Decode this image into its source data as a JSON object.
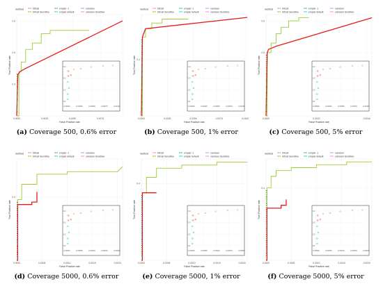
{
  "legend": {
    "title": "method",
    "items": [
      {
        "label": "bifrost",
        "color": "#f8766d"
      },
      {
        "label": "bifrost Sensitive",
        "color": "#b79f00"
      },
      {
        "label": "empiar -1",
        "color": "#00ba38"
      },
      {
        "label": "empiar default",
        "color": "#00bfc4"
      },
      {
        "label": "vamsian",
        "color": "#619cff"
      },
      {
        "label": "vamsian Sensitive",
        "color": "#f564e3"
      }
    ]
  },
  "colors": {
    "green": "#9acd32",
    "red": "#e41a1c",
    "grid": "#ececec"
  },
  "xlabel": "False Positive rate",
  "ylabel": "True Positive rate",
  "chart_data": [
    {
      "type": "line",
      "panel_letter": "(a)",
      "caption": "Coverage 500, 0.6% error",
      "xlim": [
        0,
        0.0095
      ],
      "ylim": [
        0.3,
        0.62
      ],
      "xticks": [
        "0.0000",
        "0.0025",
        "0.0050",
        "0.0075"
      ],
      "xtick_vals": [
        0,
        0.0025,
        0.005,
        0.0075
      ],
      "yticks": [
        "0.4",
        "0.5",
        "0.6"
      ],
      "ytick_vals": [
        0.4,
        0.5,
        0.6
      ],
      "series": [
        {
          "color": "green",
          "x": [
            0,
            0.0002,
            0.0002,
            0.0004,
            0.0004,
            0.0008,
            0.0008,
            0.0014,
            0.0014,
            0.0022,
            0.0022,
            0.003,
            0.003,
            0.0065
          ],
          "y": [
            0.3,
            0.3,
            0.44,
            0.44,
            0.47,
            0.47,
            0.51,
            0.51,
            0.53,
            0.53,
            0.56,
            0.56,
            0.57,
            0.57
          ]
        },
        {
          "color": "red",
          "x": [
            0,
            0.0001,
            0.0003,
            0.0008,
            0.0095
          ],
          "y": [
            0.3,
            0.43,
            0.44,
            0.45,
            0.6
          ]
        }
      ],
      "inset": {
        "xticks": [
          "0.00000",
          "0.00025",
          "0.00050",
          "0.00075",
          "0.00100"
        ],
        "yticks": [
          "0.1",
          "0.2",
          "0.3",
          "0.4"
        ]
      }
    },
    {
      "type": "line",
      "panel_letter": "(b)",
      "caption": "Coverage 500, 1% error",
      "xlim": [
        0,
        0.0102
      ],
      "ylim": [
        0.3,
        0.48
      ],
      "xticks": [
        "0.0000",
        "0.0025",
        "0.0050",
        "0.0075",
        "0.0100"
      ],
      "xtick_vals": [
        0,
        0.0025,
        0.005,
        0.0075,
        0.01
      ],
      "yticks": [
        "0.4"
      ],
      "ytick_vals": [
        0.4
      ],
      "series": [
        {
          "color": "green",
          "x": [
            0,
            0.0001,
            0.0001,
            0.0004,
            0.0004,
            0.001,
            0.001,
            0.002,
            0.002,
            0.0045
          ],
          "y": [
            0.3,
            0.3,
            0.44,
            0.44,
            0.455,
            0.455,
            0.465,
            0.465,
            0.472,
            0.472
          ]
        },
        {
          "color": "red",
          "x": [
            0,
            0.0001,
            0.0004,
            0.0102
          ],
          "y": [
            0.3,
            0.44,
            0.455,
            0.475
          ]
        }
      ],
      "inset": {
        "xticks": [
          "0.00000",
          "0.00025",
          "0.00050",
          "0.00075",
          "0.00100"
        ],
        "yticks": [
          "0.1",
          "0.2",
          "0.3",
          "0.4"
        ]
      }
    },
    {
      "type": "line",
      "panel_letter": "(c)",
      "caption": "Coverage 500, 5% error",
      "xlim": [
        0,
        0.0042
      ],
      "ylim": [
        0.3,
        0.62
      ],
      "xticks": [
        "0.0000",
        "0.0020",
        "0.0040"
      ],
      "xtick_vals": [
        0,
        0.002,
        0.004
      ],
      "yticks": [
        "0.5",
        "0.6"
      ],
      "ytick_vals": [
        0.5,
        0.6
      ],
      "series": [
        {
          "color": "green",
          "x": [
            0,
            5e-05,
            5e-05,
            0.0002,
            0.0002,
            0.0004,
            0.0004,
            0.0006,
            0.0006,
            0.0009,
            0.0009,
            0.0013,
            0.0013,
            0.0017
          ],
          "y": [
            0.3,
            0.3,
            0.5,
            0.5,
            0.53,
            0.53,
            0.56,
            0.56,
            0.58,
            0.58,
            0.6,
            0.6,
            0.61,
            0.61
          ]
        },
        {
          "color": "red",
          "x": [
            0,
            5e-05,
            0.0001,
            0.0004,
            0.0042
          ],
          "y": [
            0.3,
            0.5,
            0.51,
            0.52,
            0.61
          ]
        }
      ],
      "inset": {
        "xticks": [
          "0.00000",
          "0.00025",
          "0.00050",
          "0.00075",
          "0.00100"
        ],
        "yticks": [
          "0.1",
          "0.2",
          "0.3",
          "0.4"
        ]
      }
    },
    {
      "type": "line",
      "panel_letter": "(d)",
      "caption": "Coverage 5000, 0.6% error",
      "xlim": [
        0,
        0.0021
      ],
      "ylim": [
        0.15,
        0.55
      ],
      "xticks": [
        "0.0000",
        "0.0005",
        "0.0010",
        "0.0015",
        "0.0020"
      ],
      "xtick_vals": [
        0,
        0.0005,
        0.001,
        0.0015,
        0.002
      ],
      "yticks": [
        "0.4"
      ],
      "ytick_vals": [
        0.4
      ],
      "series": [
        {
          "color": "green",
          "x": [
            0,
            2e-05,
            2e-05,
            0.0001,
            0.0001,
            0.0004,
            0.0004,
            0.001,
            0.001,
            0.002,
            0.0021
          ],
          "y": [
            0.15,
            0.15,
            0.39,
            0.39,
            0.45,
            0.45,
            0.49,
            0.49,
            0.5,
            0.5,
            0.52
          ]
        },
        {
          "color": "red",
          "x": [
            0,
            2e-05,
            2e-05,
            0.0003,
            0.0003,
            0.0004,
            0.0004
          ],
          "y": [
            0.15,
            0.15,
            0.37,
            0.37,
            0.38,
            0.38,
            0.42
          ]
        }
      ],
      "inset": {
        "xticks": [
          "0.00000",
          "0.00005",
          "0.00010",
          "0.00015",
          "0.00020"
        ],
        "yticks": [
          "0.1",
          "0.2",
          "0.3",
          "0.4"
        ]
      }
    },
    {
      "type": "line",
      "panel_letter": "(e)",
      "caption": "Coverage 5000, 1% error",
      "xlim": [
        0,
        0.0021
      ],
      "ylim": [
        0.15,
        0.48
      ],
      "xticks": [
        "0.0000",
        "0.0005",
        "0.0010",
        "0.0015",
        "0.0020"
      ],
      "xtick_vals": [
        0,
        0.0005,
        0.001,
        0.0015,
        0.002
      ],
      "yticks": [
        "0.4"
      ],
      "ytick_vals": [
        0.4
      ],
      "series": [
        {
          "color": "green",
          "x": [
            0,
            2e-05,
            2e-05,
            0.0001,
            0.0001,
            0.0003,
            0.0003,
            0.0008,
            0.0008,
            0.0015,
            0.0015,
            0.0021
          ],
          "y": [
            0.15,
            0.15,
            0.37,
            0.37,
            0.42,
            0.42,
            0.45,
            0.45,
            0.46,
            0.46,
            0.47,
            0.47
          ]
        },
        {
          "color": "red",
          "x": [
            0,
            2e-05,
            2e-05,
            0.0003
          ],
          "y": [
            0.15,
            0.15,
            0.37,
            0.37
          ]
        }
      ],
      "inset": {
        "xticks": [
          "0.00000",
          "0.00005",
          "0.00010",
          "0.00015",
          "0.00020"
        ],
        "yticks": [
          "0.1",
          "0.2",
          "0.3",
          "0.4"
        ]
      }
    },
    {
      "type": "line",
      "panel_letter": "(f)",
      "caption": "Coverage 5000, 5% error",
      "xlim": [
        0,
        0.0021
      ],
      "ylim": [
        0.15,
        0.5
      ],
      "xticks": [
        "0.0000",
        "0.0005",
        "0.0010",
        "0.0015",
        "0.0020"
      ],
      "xtick_vals": [
        0,
        0.0005,
        0.001,
        0.0015,
        0.002
      ],
      "yticks": [
        "0.4"
      ],
      "ytick_vals": [
        0.4
      ],
      "series": [
        {
          "color": "green",
          "x": [
            0,
            2e-05,
            2e-05,
            0.0001,
            0.0001,
            0.0002,
            0.0002,
            0.0005,
            0.0005,
            0.001,
            0.001,
            0.0016,
            0.0016,
            0.0021
          ],
          "y": [
            0.15,
            0.15,
            0.4,
            0.4,
            0.44,
            0.44,
            0.46,
            0.46,
            0.47,
            0.47,
            0.48,
            0.48,
            0.49,
            0.49
          ]
        },
        {
          "color": "red",
          "x": [
            0,
            2e-05,
            2e-05,
            0.0003,
            0.0003,
            0.0004,
            0.0004
          ],
          "y": [
            0.15,
            0.15,
            0.33,
            0.33,
            0.34,
            0.34,
            0.36
          ]
        }
      ],
      "inset": {
        "xticks": [
          "0.00000",
          "0.00005",
          "0.00010",
          "0.00015",
          "0.00020"
        ],
        "yticks": [
          "0.1",
          "0.2",
          "0.3",
          "0.4"
        ]
      }
    }
  ]
}
